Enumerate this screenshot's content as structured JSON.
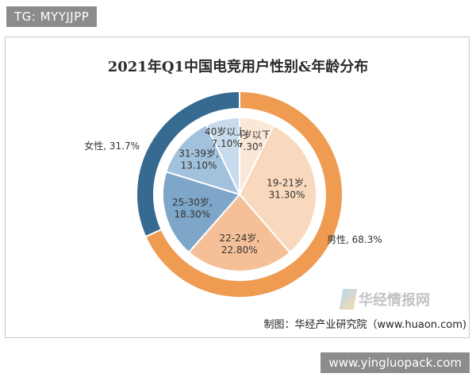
{
  "badges": {
    "top_left": "TG: MYYJJPP",
    "bottom_right": "www.yingluopack.com"
  },
  "chart_data": {
    "type": "pie",
    "title": "2021年Q1中国电竞用户性别&年龄分布",
    "source": "制图：华经产业研究院（www.huaon.com)",
    "logo_text": "华经情报网",
    "outer_ring": {
      "slices": [
        {
          "label": "男性, 68.3%",
          "value": 68.3,
          "color": "#ef9b52"
        },
        {
          "label": "女性, 31.7%",
          "value": 31.7,
          "color": "#376a91"
        }
      ]
    },
    "inner_pie": {
      "slices": [
        {
          "label_line1": "18岁以下,",
          "label_line2": "7.30%",
          "value": 7.3,
          "color": "#fbe7d6"
        },
        {
          "label_line1": "19-21岁,",
          "label_line2": "31.30%",
          "value": 31.3,
          "color": "#f8d9bd"
        },
        {
          "label_line1": "22-24岁,",
          "label_line2": "22.80%",
          "value": 22.8,
          "color": "#f5c097"
        },
        {
          "label_line1": "25-30岁,",
          "label_line2": "18.30%",
          "value": 18.3,
          "color": "#7ea6c9"
        },
        {
          "label_line1": "31-39岁,",
          "label_line2": "13.10%",
          "value": 13.1,
          "color": "#a2c1dc"
        },
        {
          "label_line1": "40岁以上,",
          "label_line2": "7.10%",
          "value": 7.1,
          "color": "#c8dbec"
        }
      ]
    }
  }
}
